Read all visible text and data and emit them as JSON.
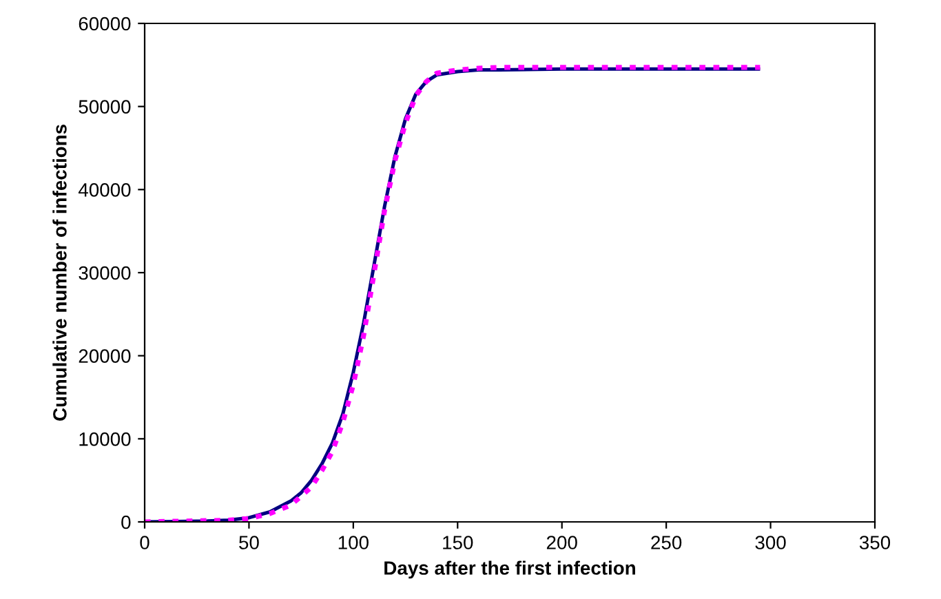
{
  "chart_data": {
    "type": "line",
    "xlabel": "Days after the first infection",
    "ylabel": "Cumulative number of infections",
    "xlim": [
      0,
      350
    ],
    "xticks": [
      0,
      50,
      100,
      150,
      200,
      250,
      300,
      350
    ],
    "ylim": [
      0,
      60000
    ],
    "yticks": [
      0,
      10000,
      20000,
      30000,
      40000,
      50000,
      60000
    ],
    "grid": false,
    "marker": "none",
    "series": [
      {
        "color": "#000080",
        "line_style": "solid",
        "x": [
          0,
          30,
          40,
          50,
          60,
          70,
          75,
          80,
          85,
          90,
          95,
          100,
          105,
          110,
          115,
          120,
          125,
          130,
          135,
          140,
          150,
          160,
          170,
          200,
          295
        ],
        "values": [
          0,
          100,
          200,
          500,
          1200,
          2500,
          3500,
          5000,
          7000,
          9500,
          13000,
          18000,
          24000,
          31000,
          38000,
          44000,
          48500,
          51500,
          53000,
          53800,
          54200,
          54400,
          54400,
          54500,
          54500
        ]
      },
      {
        "color": "#ff00ff",
        "line_style": "dotted",
        "x": [
          0,
          40,
          50,
          60,
          70,
          80,
          85,
          90,
          95,
          100,
          105,
          110,
          115,
          120,
          125,
          130,
          135,
          140,
          150,
          160,
          170,
          295
        ],
        "values": [
          0,
          200,
          400,
          1000,
          2000,
          4200,
          6200,
          8500,
          12000,
          16500,
          22500,
          30000,
          37500,
          43500,
          48000,
          51300,
          53000,
          54000,
          54400,
          54600,
          54700,
          54700
        ]
      }
    ]
  }
}
